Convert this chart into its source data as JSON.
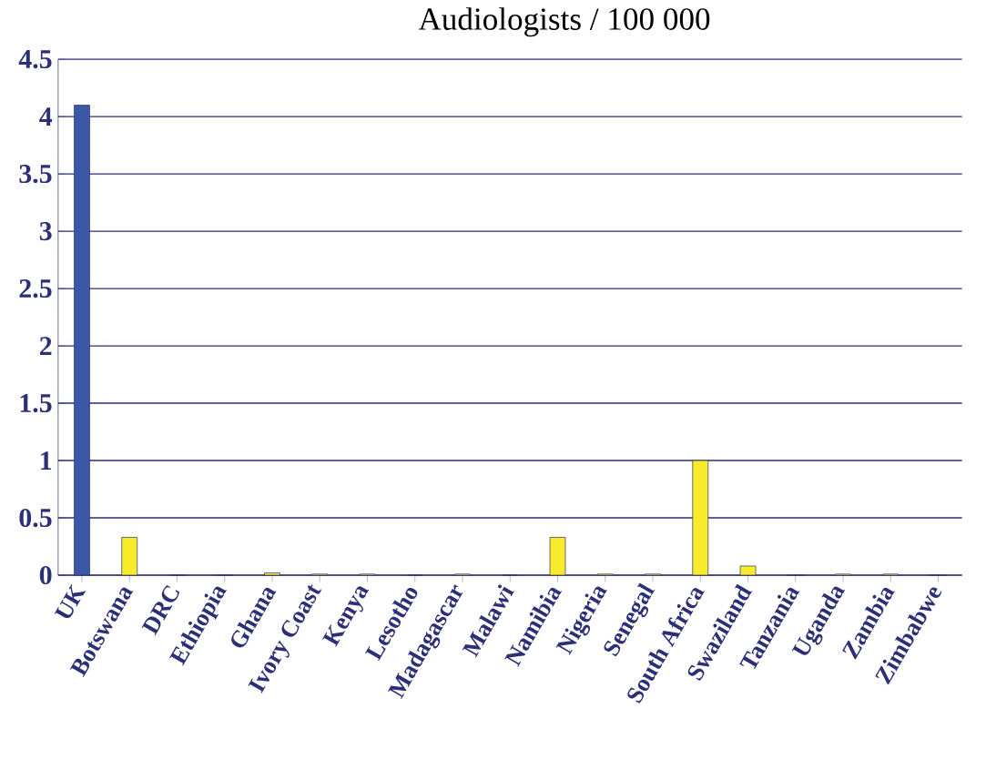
{
  "chart_data": {
    "type": "bar",
    "title": "Audiologists / 100 000",
    "categories": [
      "UK",
      "Botswana",
      "DRC",
      "Ethiopia",
      "Ghana",
      "Ivory Coast",
      "Kenya",
      "Lesotho",
      "Madagascar",
      "Malawi",
      "Namibia",
      "Nigeria",
      "Senegal",
      "South Africa",
      "Swaziland",
      "Tanzania",
      "Uganda",
      "Zambia",
      "Zimbabwe"
    ],
    "values": [
      4.1,
      0.33,
      0,
      0,
      0.02,
      0.01,
      0.01,
      0,
      0.01,
      0,
      0.33,
      0.01,
      0.01,
      1.0,
      0.08,
      0,
      0.01,
      0.01,
      0
    ],
    "colors": [
      "#3c57a8",
      "#f7eb2a",
      "#f7eb2a",
      "#f7eb2a",
      "#f7eb2a",
      "#f7eb2a",
      "#f7eb2a",
      "#f7eb2a",
      "#f7eb2a",
      "#f7eb2a",
      "#f7eb2a",
      "#f7eb2a",
      "#f7eb2a",
      "#f7eb2a",
      "#f7eb2a",
      "#f7eb2a",
      "#f7eb2a",
      "#f7eb2a",
      "#f7eb2a"
    ],
    "ylim": [
      0,
      4.5
    ],
    "yticks": [
      0,
      0.5,
      1,
      1.5,
      2,
      2.5,
      3,
      3.5,
      4,
      4.5
    ],
    "grid": "y"
  }
}
